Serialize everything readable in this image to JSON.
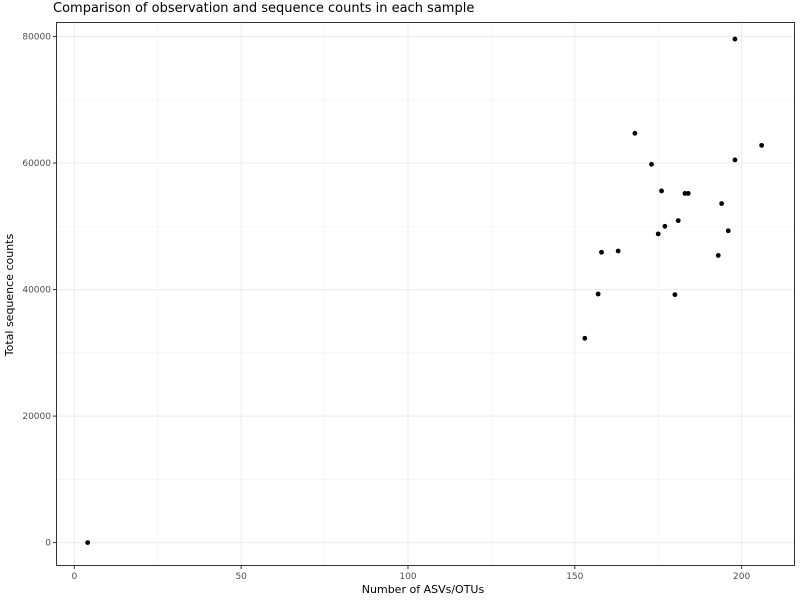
{
  "chart_data": {
    "type": "scatter",
    "title": "Comparison of observation and sequence counts in each sample",
    "xlabel": "Number of ASVs/OTUs",
    "ylabel": "Total sequence counts",
    "xlim": [
      -5.5,
      216
    ],
    "ylim": [
      -3700,
      82300
    ],
    "xticks": [
      0,
      50,
      100,
      150,
      200
    ],
    "xtick_labels": [
      "0",
      "50",
      "100",
      "150",
      "200"
    ],
    "yticks": [
      0,
      20000,
      40000,
      60000,
      80000
    ],
    "ytick_labels": [
      "0",
      "20000",
      "40000",
      "60000",
      "80000"
    ],
    "grid": true,
    "legend": "none",
    "point_color": "#000000",
    "points": [
      {
        "x": 4,
        "y": 0
      },
      {
        "x": 153,
        "y": 32300
      },
      {
        "x": 157,
        "y": 39300
      },
      {
        "x": 158,
        "y": 45900
      },
      {
        "x": 163,
        "y": 46100
      },
      {
        "x": 168,
        "y": 64700
      },
      {
        "x": 173,
        "y": 59800
      },
      {
        "x": 175,
        "y": 48800
      },
      {
        "x": 176,
        "y": 55600
      },
      {
        "x": 177,
        "y": 50000
      },
      {
        "x": 180,
        "y": 39200
      },
      {
        "x": 181,
        "y": 50900
      },
      {
        "x": 183,
        "y": 55200
      },
      {
        "x": 184,
        "y": 55200
      },
      {
        "x": 193,
        "y": 45400
      },
      {
        "x": 194,
        "y": 53600
      },
      {
        "x": 196,
        "y": 49300
      },
      {
        "x": 198,
        "y": 60500
      },
      {
        "x": 198,
        "y": 79600
      },
      {
        "x": 206,
        "y": 62800
      }
    ]
  }
}
